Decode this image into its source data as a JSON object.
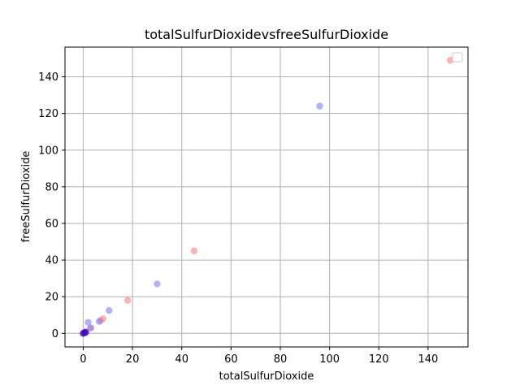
{
  "chart_data": {
    "type": "scatter",
    "title": "totalSulfurDioxidevsfreeSulfurDioxide",
    "xlabel": "totalSulfurDioxide",
    "ylabel": "freeSulfurDioxide",
    "xlim": [
      -7.4,
      156.2
    ],
    "ylim": [
      -7.4,
      156.2
    ],
    "xticks": [
      0,
      20,
      40,
      60,
      80,
      100,
      120,
      140
    ],
    "yticks": [
      0,
      20,
      40,
      60,
      80,
      100,
      120,
      140
    ],
    "grid": true,
    "legend": "upper right (empty)",
    "series": [
      {
        "color": "#ff7f7f",
        "points": [
          {
            "x": 0,
            "y": 0
          },
          {
            "x": 0.5,
            "y": 0.5
          },
          {
            "x": 1,
            "y": 1
          },
          {
            "x": 3,
            "y": 3
          },
          {
            "x": 7,
            "y": 7
          },
          {
            "x": 8,
            "y": 8
          },
          {
            "x": 18,
            "y": 18
          },
          {
            "x": 45,
            "y": 45
          },
          {
            "x": 149,
            "y": 149
          }
        ]
      },
      {
        "color": "#7f7fff",
        "points": [
          {
            "x": 0,
            "y": 0
          },
          {
            "x": 0.5,
            "y": 0.5
          },
          {
            "x": 1,
            "y": 0.5
          },
          {
            "x": 2,
            "y": 6
          },
          {
            "x": 3,
            "y": 3
          },
          {
            "x": 6.5,
            "y": 6.5
          },
          {
            "x": 10.5,
            "y": 12.5
          },
          {
            "x": 30,
            "y": 27
          },
          {
            "x": 96,
            "y": 124
          }
        ]
      },
      {
        "color": "#3f00bf",
        "points": [
          {
            "x": 0,
            "y": 0
          },
          {
            "x": 0.5,
            "y": 0.3
          },
          {
            "x": 1,
            "y": 0.6
          }
        ]
      }
    ]
  }
}
